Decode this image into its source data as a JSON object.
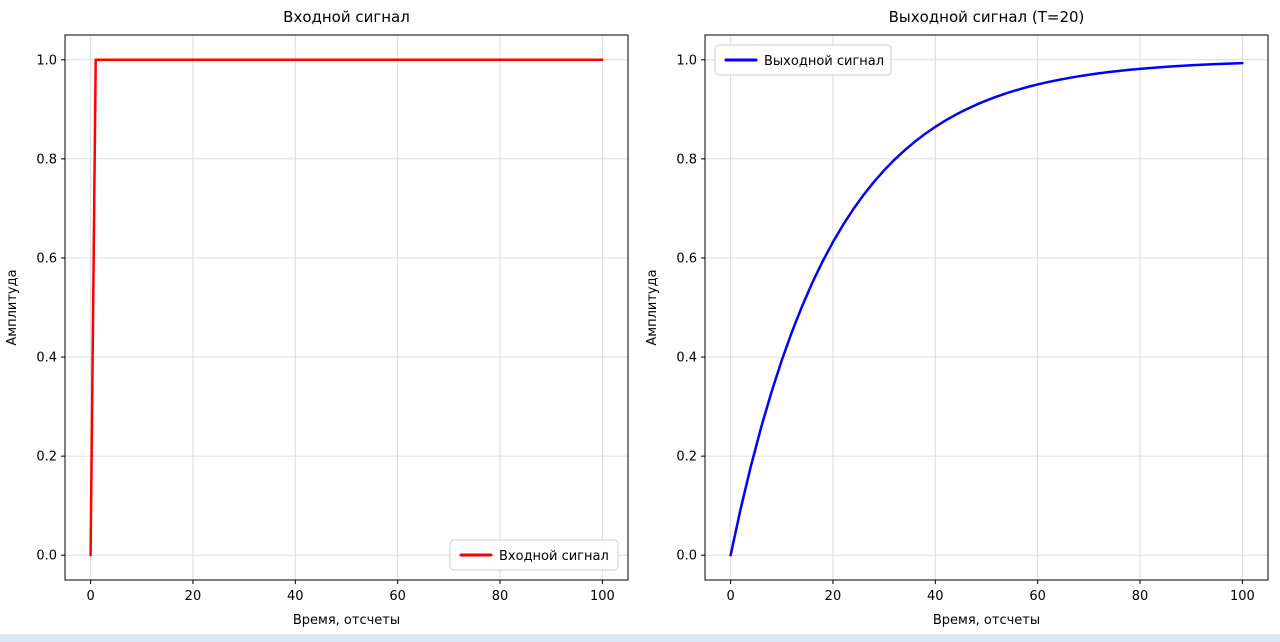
{
  "page": {
    "background_color": "#ffffff",
    "bottom_strip_color": "#dbe9f6"
  },
  "chart_data": [
    {
      "type": "line",
      "title": "Входной сигнал",
      "xlabel": "Время, отсчеты",
      "ylabel": "Амплитуда",
      "xlim": [
        -5,
        105
      ],
      "ylim": [
        -0.05,
        1.05
      ],
      "xticks": [
        0,
        20,
        40,
        60,
        80,
        100
      ],
      "xticklabels": [
        "0",
        "20",
        "40",
        "60",
        "80",
        "100"
      ],
      "yticks": [
        0.0,
        0.2,
        0.4,
        0.6,
        0.8,
        1.0
      ],
      "yticklabels": [
        "0.0",
        "0.2",
        "0.4",
        "0.6",
        "0.8",
        "1.0"
      ],
      "grid": true,
      "legend": {
        "label": "Входной сигнал",
        "position": "lower-right"
      },
      "series": [
        {
          "name": "Входной сигнал",
          "color": "#ff0000",
          "linewidth": 2.5,
          "x": [
            0,
            1,
            100
          ],
          "y": [
            0,
            1,
            1
          ]
        }
      ]
    },
    {
      "type": "line",
      "title": "Выходной сигнал (T=20)",
      "xlabel": "Время, отсчеты",
      "ylabel": "Амплитуда",
      "xlim": [
        -5,
        105
      ],
      "ylim": [
        -0.05,
        1.05
      ],
      "xticks": [
        0,
        20,
        40,
        60,
        80,
        100
      ],
      "xticklabels": [
        "0",
        "20",
        "40",
        "60",
        "80",
        "100"
      ],
      "yticks": [
        0.0,
        0.2,
        0.4,
        0.6,
        0.8,
        1.0
      ],
      "yticklabels": [
        "0.0",
        "0.2",
        "0.4",
        "0.6",
        "0.8",
        "1.0"
      ],
      "grid": true,
      "legend": {
        "label": "Выходной сигнал",
        "position": "upper-left"
      },
      "series": [
        {
          "name": "Выходной сигнал",
          "color": "#0000ff",
          "linewidth": 2.5,
          "x": [
            0,
            2,
            4,
            6,
            8,
            10,
            12,
            14,
            16,
            18,
            20,
            22,
            24,
            26,
            28,
            30,
            32,
            34,
            36,
            38,
            40,
            42,
            44,
            46,
            48,
            50,
            52,
            54,
            56,
            58,
            60,
            62,
            64,
            66,
            68,
            70,
            72,
            74,
            76,
            78,
            80,
            82,
            84,
            86,
            88,
            90,
            92,
            94,
            96,
            98,
            100
          ],
          "y": [
            0.0,
            0.0952,
            0.1813,
            0.2592,
            0.3297,
            0.3935,
            0.4512,
            0.5034,
            0.5507,
            0.5934,
            0.6321,
            0.6671,
            0.6988,
            0.7275,
            0.7534,
            0.7769,
            0.7981,
            0.8173,
            0.8347,
            0.8504,
            0.8647,
            0.8775,
            0.8892,
            0.8997,
            0.9093,
            0.9179,
            0.9257,
            0.9328,
            0.9392,
            0.945,
            0.9502,
            0.955,
            0.9592,
            0.9631,
            0.9666,
            0.9698,
            0.9727,
            0.9753,
            0.9776,
            0.9798,
            0.9817,
            0.9834,
            0.985,
            0.9864,
            0.9877,
            0.9889,
            0.9899,
            0.9909,
            0.9918,
            0.9926,
            0.9933
          ]
        }
      ]
    }
  ]
}
